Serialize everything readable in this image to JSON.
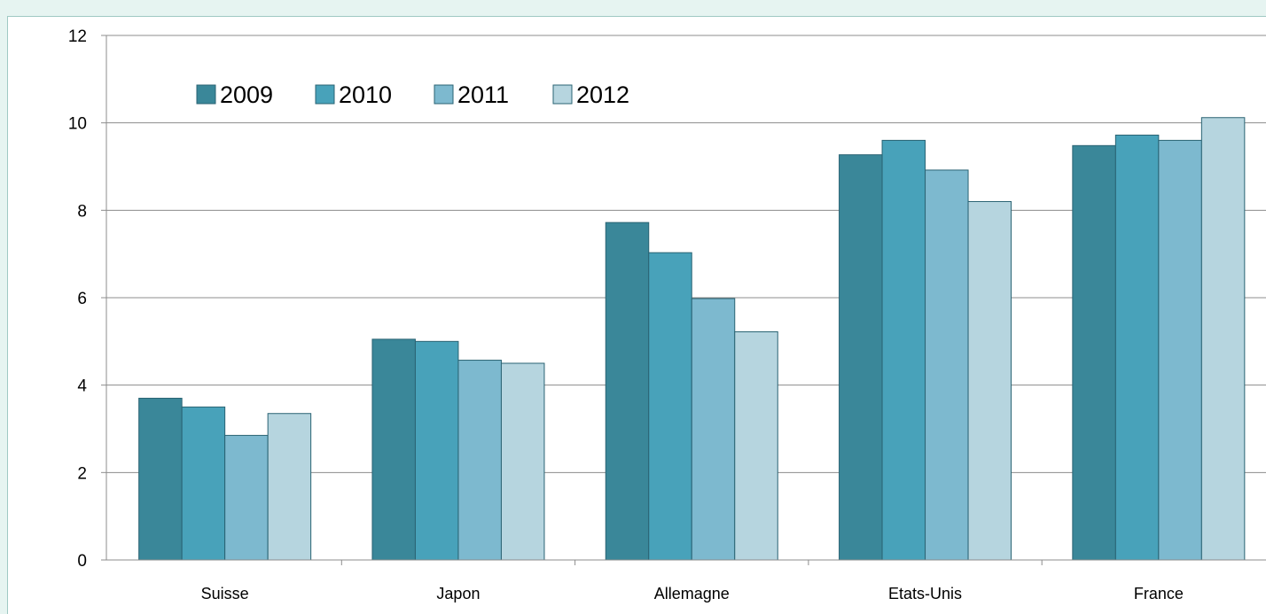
{
  "chart_data": {
    "type": "bar",
    "categories": [
      "Suisse",
      "Japon",
      "Allemagne",
      "Etats-Unis",
      "France"
    ],
    "series": [
      {
        "name": "2009",
        "color": "#3a8799",
        "values": [
          3.7,
          5.05,
          7.72,
          9.27,
          9.48
        ]
      },
      {
        "name": "2010",
        "color": "#48a2ba",
        "values": [
          3.5,
          5.0,
          7.03,
          9.6,
          9.72
        ]
      },
      {
        "name": "2011",
        "color": "#7db9cf",
        "values": [
          2.85,
          4.57,
          5.98,
          8.92,
          9.6
        ]
      },
      {
        "name": "2012",
        "color": "#b6d5df",
        "values": [
          3.35,
          4.5,
          5.22,
          8.2,
          10.12
        ]
      }
    ],
    "yticks": [
      "0",
      "2",
      "4",
      "6",
      "8",
      "10",
      "12"
    ],
    "ylim": [
      0,
      12
    ],
    "grid": true,
    "legend": "top-left",
    "title": "",
    "xlabel": "",
    "ylabel": ""
  }
}
